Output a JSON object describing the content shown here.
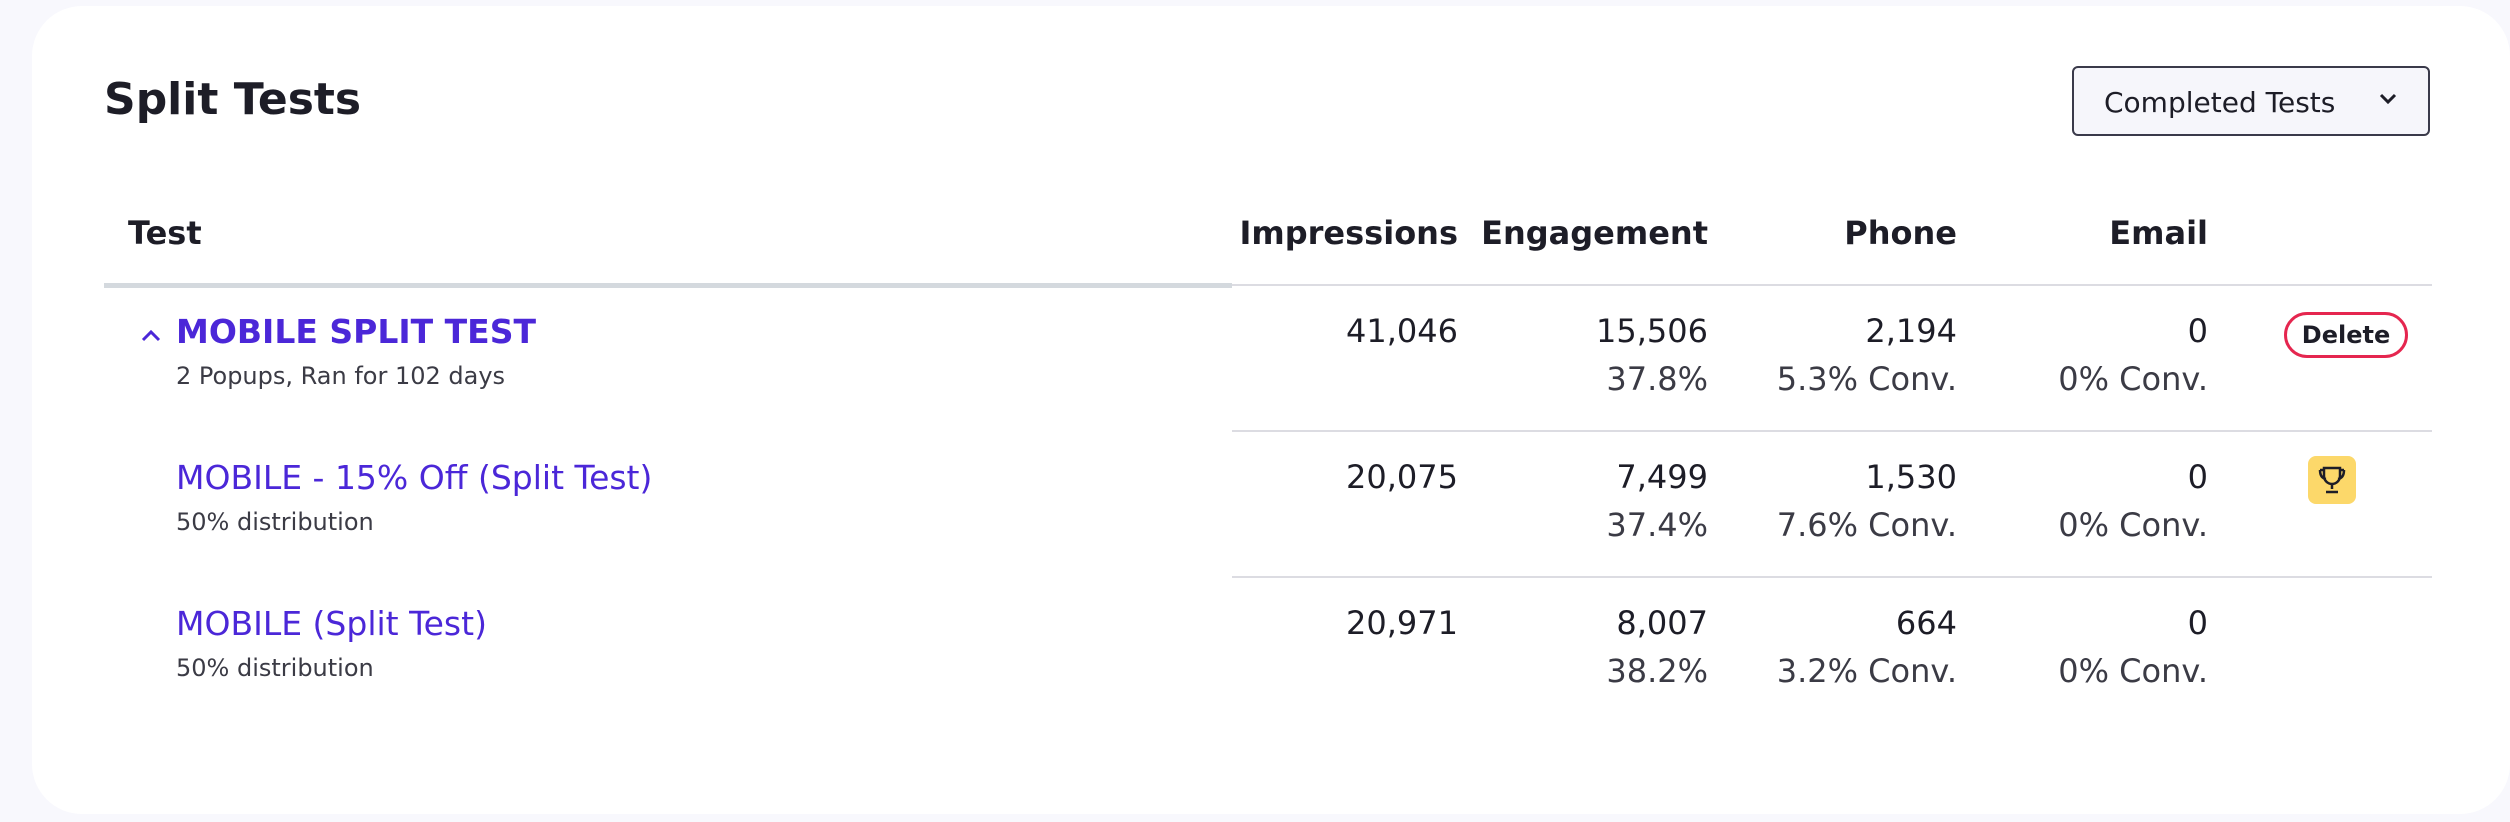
{
  "header": {
    "title": "Split Tests",
    "filter": "Completed Tests"
  },
  "table": {
    "columns": [
      "Test",
      "Impressions",
      "Engagement",
      "Phone",
      "Email"
    ],
    "rows": [
      {
        "name": "MOBILE SPLIT TEST",
        "subtitle": "2 Popups, Ran for 102 days",
        "impressions": "41,046",
        "engagement": "15,506",
        "engagement_rate": "37.8%",
        "phone": "2,194",
        "phone_conv": "5.3% Conv.",
        "email": "0",
        "email_conv": "0% Conv.",
        "action": "Delete"
      },
      {
        "name": "MOBILE - 15% Off (Split Test)",
        "subtitle": "50% distribution",
        "impressions": "20,075",
        "engagement": "7,499",
        "engagement_rate": "37.4%",
        "phone": "1,530",
        "phone_conv": "7.6% Conv.",
        "email": "0",
        "email_conv": "0% Conv."
      },
      {
        "name": "MOBILE (Split Test)",
        "subtitle": "50% distribution",
        "impressions": "20,971",
        "engagement": "8,007",
        "engagement_rate": "38.2%",
        "phone": "664",
        "phone_conv": "3.2% Conv.",
        "email": "0",
        "email_conv": "0% Conv."
      }
    ]
  }
}
